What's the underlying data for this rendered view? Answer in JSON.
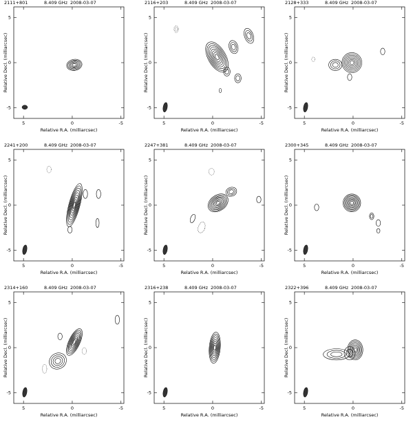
{
  "chart_data": [
    {
      "type": "contour",
      "source": "2111+801",
      "frequency": "8.409 GHz",
      "date": "2008-03-07",
      "xlabel": "Relative R.A. (milliarcsec)",
      "ylabel": "Relative Decl. (milliarcsec)",
      "xlim": [
        6,
        -5.3
      ],
      "ylim": [
        -6.2,
        6.2
      ],
      "xticks": [
        5,
        0,
        -5
      ],
      "yticks": [
        5,
        0,
        -5
      ]
    },
    {
      "type": "contour",
      "source": "2116+203",
      "frequency": "8.409 GHz",
      "date": "2008-03-07",
      "xlabel": "Relative R.A. (milliarcsec)",
      "ylabel": "Relative Decl. (milliarcsec)",
      "xlim": [
        6,
        -5.3
      ],
      "ylim": [
        -6.2,
        6.2
      ],
      "xticks": [
        5,
        0,
        -5
      ],
      "yticks": [
        5,
        0,
        -5
      ]
    },
    {
      "type": "contour",
      "source": "2128+333",
      "frequency": "8.409 GHz",
      "date": "2008-03-07",
      "xlabel": "Relative R.A. (milliarcsec)",
      "ylabel": "Relative Decl. (milliarcsec)",
      "xlim": [
        6,
        -5.3
      ],
      "ylim": [
        -6.2,
        6.2
      ],
      "xticks": [
        5,
        0,
        -5
      ],
      "yticks": [
        5,
        0,
        -5
      ]
    },
    {
      "type": "contour",
      "source": "2241+200",
      "frequency": "8.409 GHz",
      "date": "2008-03-07",
      "xlabel": "Relative R.A. (milliarcsec)",
      "ylabel": "Relative Decl. (milliarcsec)",
      "xlim": [
        6,
        -5.3
      ],
      "ylim": [
        -6.2,
        6.2
      ],
      "xticks": [
        5,
        0,
        -5
      ],
      "yticks": [
        5,
        0,
        -5
      ]
    },
    {
      "type": "contour",
      "source": "2247+381",
      "frequency": "8.409 GHz",
      "date": "2008-03-07",
      "xlabel": "Relative R.A. (milliarcsec)",
      "ylabel": "Relative Decl. (milliarcsec)",
      "xlim": [
        6,
        -5.3
      ],
      "ylim": [
        -6.2,
        6.2
      ],
      "xticks": [
        5,
        0,
        -5
      ],
      "yticks": [
        5,
        0,
        -5
      ]
    },
    {
      "type": "contour",
      "source": "2300+345",
      "frequency": "8.409 GHz",
      "date": "2008-03-07",
      "xlabel": "Relative R.A. (milliarcsec)",
      "ylabel": "Relative Decl. (milliarcsec)",
      "xlim": [
        6,
        -5.3
      ],
      "ylim": [
        -6.2,
        6.2
      ],
      "xticks": [
        5,
        0,
        -5
      ],
      "yticks": [
        5,
        0,
        -5
      ]
    },
    {
      "type": "contour",
      "source": "2314+160",
      "frequency": "8.409 GHz",
      "date": "2008-03-07",
      "xlabel": "Relative R.A. (milliarcsec)",
      "ylabel": "Relative Decl. (milliarcsec)",
      "xlim": [
        6,
        -5.3
      ],
      "ylim": [
        -6.2,
        6.2
      ],
      "xticks": [
        5,
        0,
        -5
      ],
      "yticks": [
        5,
        0,
        -5
      ]
    },
    {
      "type": "contour",
      "source": "2316+238",
      "frequency": "8.409 GHz",
      "date": "2008-03-07",
      "xlabel": "Relative R.A. (milliarcsec)",
      "ylabel": "Relative Decl. (milliarcsec)",
      "xlim": [
        6,
        -5.3
      ],
      "ylim": [
        -6.2,
        6.2
      ],
      "xticks": [
        5,
        0,
        -5
      ],
      "yticks": [
        5,
        0,
        -5
      ]
    },
    {
      "type": "contour",
      "source": "2322+396",
      "frequency": "8.409 GHz",
      "date": "2008-03-07",
      "xlabel": "Relative R.A. (milliarcsec)",
      "ylabel": "Relative Decl. (milliarcsec)",
      "xlim": [
        6,
        -5.3
      ],
      "ylim": [
        -6.2,
        6.2
      ],
      "xticks": [
        5,
        0,
        -5
      ],
      "yticks": [
        5,
        0,
        -5
      ]
    }
  ]
}
